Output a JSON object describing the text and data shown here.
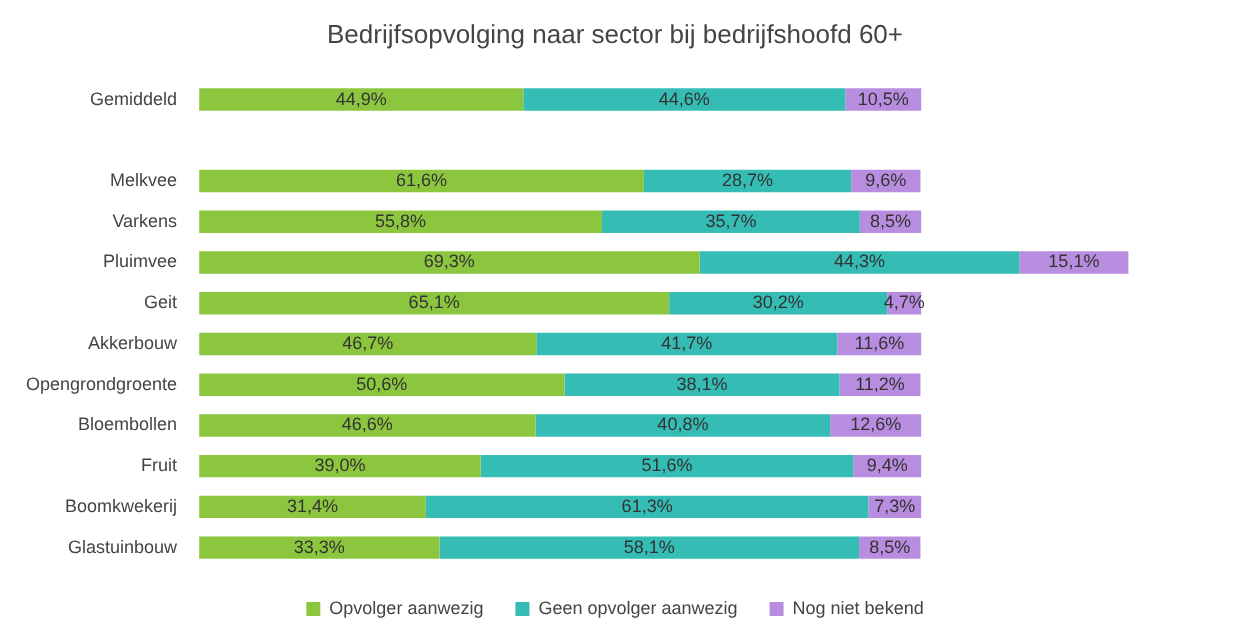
{
  "chart_data": {
    "type": "bar",
    "orientation": "horizontal",
    "stacked": true,
    "title": "Bedrijfsopvolging naar sector bij bedrijfshoofd 60+",
    "categories": [
      "Gemiddeld",
      null,
      "Melkvee",
      "Varkens",
      "Pluimvee",
      "Geit",
      "Akkerbouw",
      "Opengrondgroente",
      "Bloembollen",
      "Fruit",
      "Boomkwekerij",
      "Glastuinbouw"
    ],
    "series": [
      {
        "name": "Opvolger aanwezig",
        "color": "#8cc63e",
        "values": [
          44.9,
          null,
          61.6,
          55.8,
          69.3,
          65.1,
          46.7,
          50.6,
          46.6,
          39.0,
          31.4,
          33.3
        ],
        "value_labels": [
          "44,9%",
          null,
          "61,6%",
          "55,8%",
          "69,3%",
          "65,1%",
          "46,7%",
          "50,6%",
          "46,6%",
          "39,0%",
          "31,4%",
          "33,3%"
        ]
      },
      {
        "name": "Geen opvolger aanwezig",
        "color": "#35bcb5",
        "values": [
          44.6,
          null,
          28.7,
          35.7,
          44.3,
          30.2,
          41.7,
          38.1,
          40.8,
          51.6,
          61.3,
          58.1
        ],
        "value_labels": [
          "44,6%",
          null,
          "28,7%",
          "35,7%",
          "44,3%",
          "30,2%",
          "41,7%",
          "38,1%",
          "40,8%",
          "51,6%",
          "61,3%",
          "58,1%"
        ]
      },
      {
        "name": "Nog niet bekend",
        "color": "#b88de0",
        "values": [
          10.5,
          null,
          9.6,
          8.5,
          15.1,
          4.7,
          11.6,
          11.2,
          12.6,
          9.4,
          7.3,
          8.5
        ],
        "value_labels": [
          "10,5%",
          null,
          "9,6%",
          "8,5%",
          "15,1%",
          "4,7%",
          "11,6%",
          "11,2%",
          "12,6%",
          "9,4%",
          "7,3%",
          "8,5%"
        ]
      }
    ],
    "tick_labels": "y",
    "legend": "bottom"
  }
}
